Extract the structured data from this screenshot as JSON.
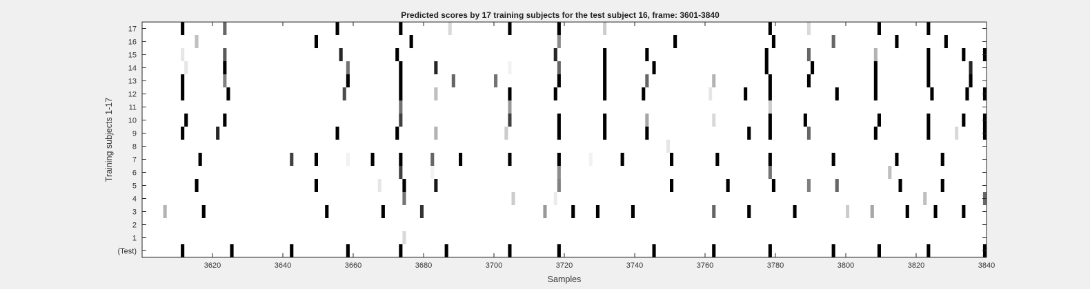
{
  "chart_data": {
    "type": "heatmap",
    "title": "Predicted scores by 17 training subjects for the test subject 16, frame: 3601-3840",
    "xlabel": "Samples",
    "ylabel": "Training subjects 1-17",
    "xlim": [
      3601,
      3840
    ],
    "x_ticks": [
      3620,
      3640,
      3660,
      3680,
      3700,
      3720,
      3740,
      3760,
      3780,
      3800,
      3820,
      3840
    ],
    "y_tick_labels": [
      "(Test)",
      "1",
      "2",
      "3",
      "4",
      "5",
      "6",
      "7",
      "8",
      "9",
      "10",
      "11",
      "12",
      "13",
      "14",
      "15",
      "16",
      "17"
    ],
    "colormap": "grayscale: 0 = white, 1 = black",
    "grid": false,
    "rows": [
      {
        "label": "(Test)",
        "marks": [
          [
            3612,
            1
          ],
          [
            3626,
            1
          ],
          [
            3643,
            1
          ],
          [
            3659,
            1
          ],
          [
            3674,
            1
          ],
          [
            3687,
            1
          ],
          [
            3705,
            1
          ],
          [
            3719,
            1
          ],
          [
            3746,
            1
          ],
          [
            3763,
            1
          ],
          [
            3779,
            1
          ],
          [
            3797,
            1
          ],
          [
            3810,
            1
          ],
          [
            3824,
            1
          ],
          [
            3840,
            1
          ]
        ]
      },
      {
        "label": "1",
        "marks": [
          [
            3675,
            0.15
          ]
        ]
      },
      {
        "label": "2",
        "marks": []
      },
      {
        "label": "3",
        "marks": [
          [
            3607,
            0.3
          ],
          [
            3618,
            1
          ],
          [
            3653,
            1
          ],
          [
            3669,
            1
          ],
          [
            3680,
            0.8
          ],
          [
            3715,
            0.4
          ],
          [
            3723,
            1
          ],
          [
            3730,
            1
          ],
          [
            3740,
            1
          ],
          [
            3763,
            0.6
          ],
          [
            3773,
            1
          ],
          [
            3786,
            1
          ],
          [
            3801,
            0.2
          ],
          [
            3808,
            0.35
          ],
          [
            3818,
            1
          ],
          [
            3826,
            1
          ],
          [
            3834,
            1
          ]
        ]
      },
      {
        "label": "4",
        "marks": [
          [
            3675,
            0.55
          ],
          [
            3706,
            0.2
          ],
          [
            3718,
            0.08
          ],
          [
            3823,
            0.25
          ],
          [
            3840,
            0.6
          ]
        ]
      },
      {
        "label": "5",
        "marks": [
          [
            3616,
            1
          ],
          [
            3650,
            1
          ],
          [
            3668,
            0.1
          ],
          [
            3675,
            1
          ],
          [
            3684,
            0.9
          ],
          [
            3719,
            0.5
          ],
          [
            3751,
            1
          ],
          [
            3767,
            1
          ],
          [
            3780,
            1
          ],
          [
            3790,
            0.5
          ],
          [
            3798,
            0.6
          ],
          [
            3816,
            1
          ],
          [
            3828,
            1
          ]
        ]
      },
      {
        "label": "6",
        "marks": [
          [
            3674,
            0.75
          ],
          [
            3683,
            0.05
          ],
          [
            3719,
            0.45
          ],
          [
            3779,
            0.55
          ],
          [
            3813,
            0.25
          ]
        ]
      },
      {
        "label": "7",
        "marks": [
          [
            3617,
            1
          ],
          [
            3643,
            0.75
          ],
          [
            3650,
            1
          ],
          [
            3659,
            0.05
          ],
          [
            3666,
            1
          ],
          [
            3674,
            1
          ],
          [
            3683,
            0.6
          ],
          [
            3691,
            1
          ],
          [
            3705,
            1
          ],
          [
            3719,
            1
          ],
          [
            3728,
            0.05
          ],
          [
            3737,
            1
          ],
          [
            3751,
            1
          ],
          [
            3764,
            1
          ],
          [
            3779,
            1
          ],
          [
            3797,
            1
          ],
          [
            3815,
            1
          ],
          [
            3828,
            1
          ]
        ]
      },
      {
        "label": "8",
        "marks": [
          [
            3750,
            0.1
          ]
        ]
      },
      {
        "label": "9",
        "marks": [
          [
            3612,
            1
          ],
          [
            3622,
            0.85
          ],
          [
            3656,
            1
          ],
          [
            3673,
            1
          ],
          [
            3684,
            0.3
          ],
          [
            3704,
            0.2
          ],
          [
            3719,
            1
          ],
          [
            3732,
            1
          ],
          [
            3744,
            1
          ],
          [
            3773,
            1
          ],
          [
            3779,
            1
          ],
          [
            3790,
            0.6
          ],
          [
            3809,
            1
          ],
          [
            3824,
            1
          ],
          [
            3832,
            0.15
          ],
          [
            3840,
            1
          ]
        ]
      },
      {
        "label": "10",
        "marks": [
          [
            3613,
            1
          ],
          [
            3624,
            1
          ],
          [
            3674,
            0.75
          ],
          [
            3705,
            0.75
          ],
          [
            3719,
            1
          ],
          [
            3732,
            1
          ],
          [
            3744,
            0.35
          ],
          [
            3763,
            0.15
          ],
          [
            3779,
            1
          ],
          [
            3789,
            1
          ],
          [
            3810,
            1
          ],
          [
            3824,
            1
          ],
          [
            3834,
            1
          ],
          [
            3840,
            1
          ]
        ]
      },
      {
        "label": "11",
        "marks": [
          [
            3674,
            0.55
          ],
          [
            3705,
            0.4
          ],
          [
            3779,
            0.2
          ]
        ]
      },
      {
        "label": "12",
        "marks": [
          [
            3612,
            1
          ],
          [
            3625,
            1
          ],
          [
            3658,
            0.7
          ],
          [
            3674,
            1
          ],
          [
            3684,
            0.25
          ],
          [
            3705,
            1
          ],
          [
            3718,
            1
          ],
          [
            3732,
            1
          ],
          [
            3743,
            1
          ],
          [
            3762,
            0.1
          ],
          [
            3772,
            1
          ],
          [
            3779,
            1
          ],
          [
            3798,
            1
          ],
          [
            3809,
            1
          ],
          [
            3825,
            1
          ],
          [
            3835,
            1
          ],
          [
            3840,
            1
          ]
        ]
      },
      {
        "label": "13",
        "marks": [
          [
            3612,
            1
          ],
          [
            3624,
            0.5
          ],
          [
            3659,
            1
          ],
          [
            3674,
            1
          ],
          [
            3689,
            0.6
          ],
          [
            3701,
            0.55
          ],
          [
            3719,
            1
          ],
          [
            3732,
            1
          ],
          [
            3744,
            0.6
          ],
          [
            3763,
            0.3
          ],
          [
            3779,
            1
          ],
          [
            3790,
            1
          ],
          [
            3809,
            1
          ],
          [
            3824,
            1
          ],
          [
            3836,
            1
          ]
        ]
      },
      {
        "label": "14",
        "marks": [
          [
            3613,
            0.1
          ],
          [
            3624,
            1
          ],
          [
            3659,
            0.55
          ],
          [
            3674,
            1
          ],
          [
            3684,
            0.85
          ],
          [
            3705,
            0.05
          ],
          [
            3719,
            0.6
          ],
          [
            3732,
            1
          ],
          [
            3746,
            1
          ],
          [
            3778,
            1
          ],
          [
            3791,
            1
          ],
          [
            3809,
            1
          ],
          [
            3824,
            1
          ],
          [
            3836,
            0.85
          ]
        ]
      },
      {
        "label": "15",
        "marks": [
          [
            3612,
            0.1
          ],
          [
            3624,
            0.65
          ],
          [
            3657,
            0.85
          ],
          [
            3673,
            1
          ],
          [
            3718,
            0.85
          ],
          [
            3732,
            1
          ],
          [
            3744,
            1
          ],
          [
            3778,
            1
          ],
          [
            3790,
            0.6
          ],
          [
            3809,
            0.3
          ],
          [
            3824,
            1
          ],
          [
            3834,
            1
          ],
          [
            3840,
            1
          ]
        ]
      },
      {
        "label": "16",
        "marks": [
          [
            3616,
            0.25
          ],
          [
            3650,
            1
          ],
          [
            3677,
            1
          ],
          [
            3719,
            0.45
          ],
          [
            3752,
            1
          ],
          [
            3780,
            1
          ],
          [
            3797,
            0.6
          ],
          [
            3815,
            1
          ],
          [
            3829,
            1
          ]
        ]
      },
      {
        "label": "17",
        "marks": [
          [
            3612,
            1
          ],
          [
            3624,
            0.6
          ],
          [
            3656,
            1
          ],
          [
            3674,
            1
          ],
          [
            3688,
            0.15
          ],
          [
            3705,
            1
          ],
          [
            3719,
            1
          ],
          [
            3732,
            0.2
          ],
          [
            3779,
            1
          ],
          [
            3790,
            0.15
          ],
          [
            3810,
            1
          ],
          [
            3824,
            1
          ]
        ]
      }
    ]
  }
}
